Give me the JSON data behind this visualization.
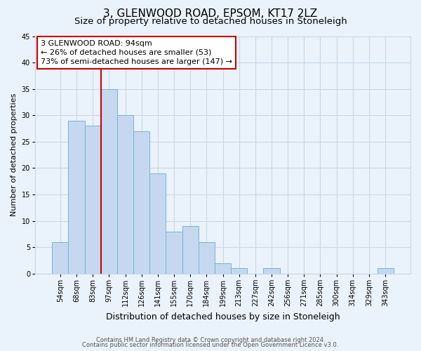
{
  "title": "3, GLENWOOD ROAD, EPSOM, KT17 2LZ",
  "subtitle": "Size of property relative to detached houses in Stoneleigh",
  "xlabel": "Distribution of detached houses by size in Stoneleigh",
  "ylabel": "Number of detached properties",
  "bar_labels": [
    "54sqm",
    "68sqm",
    "83sqm",
    "97sqm",
    "112sqm",
    "126sqm",
    "141sqm",
    "155sqm",
    "170sqm",
    "184sqm",
    "199sqm",
    "213sqm",
    "227sqm",
    "242sqm",
    "256sqm",
    "271sqm",
    "285sqm",
    "300sqm",
    "314sqm",
    "329sqm",
    "343sqm"
  ],
  "bar_values": [
    6,
    29,
    28,
    35,
    30,
    27,
    19,
    8,
    9,
    6,
    2,
    1,
    0,
    1,
    0,
    0,
    0,
    0,
    0,
    0,
    1
  ],
  "bar_color": "#c5d8f0",
  "bar_edge_color": "#7ab3d4",
  "vline_index": 3,
  "vline_color": "#cc0000",
  "annotation_line1": "3 GLENWOOD ROAD: 94sqm",
  "annotation_line2": "← 26% of detached houses are smaller (53)",
  "annotation_line3": "73% of semi-detached houses are larger (147) →",
  "annotation_box_color": "#cc0000",
  "ylim": [
    0,
    45
  ],
  "yticks": [
    0,
    5,
    10,
    15,
    20,
    25,
    30,
    35,
    40,
    45
  ],
  "grid_color": "#c8d8e8",
  "background_color": "#eaf2fb",
  "footer_line1": "Contains HM Land Registry data © Crown copyright and database right 2024.",
  "footer_line2": "Contains public sector information licensed under the Open Government Licence v3.0.",
  "title_fontsize": 11,
  "subtitle_fontsize": 9.5,
  "xlabel_fontsize": 9,
  "ylabel_fontsize": 8,
  "tick_fontsize": 7,
  "annotation_fontsize": 8,
  "footer_fontsize": 6
}
